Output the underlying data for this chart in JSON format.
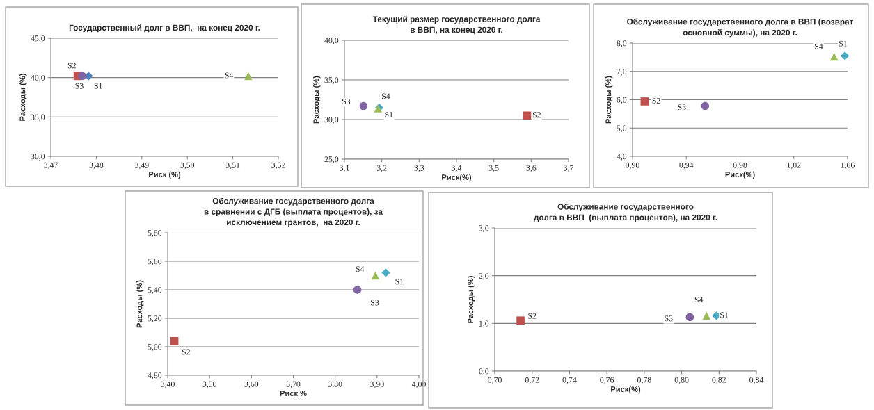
{
  "chart_data": [
    {
      "type": "scatter",
      "title": "Государственный долг в ВВП,  на конец 2020 г.",
      "xlabel": "Риск (%)",
      "ylabel": "Расходы (%)",
      "grid": "y",
      "legend": false,
      "xlim": [
        3.47,
        3.52
      ],
      "xticks": [
        {
          "value": 3.47,
          "label": "3,47"
        },
        {
          "value": 3.48,
          "label": "3,48"
        },
        {
          "value": 3.49,
          "label": "3,49"
        },
        {
          "value": 3.5,
          "label": "3,50"
        },
        {
          "value": 3.51,
          "label": "3,51"
        },
        {
          "value": 3.52,
          "label": "3,52"
        }
      ],
      "ylim": [
        30,
        45
      ],
      "yticks": [
        {
          "value": 30,
          "label": "30,0"
        },
        {
          "value": 35,
          "label": "35,0"
        },
        {
          "value": 40,
          "label": "40,0"
        },
        {
          "value": 45,
          "label": "45,0"
        }
      ],
      "series": [
        {
          "name": "S1",
          "color": "#4f81bd",
          "marker": "diamond",
          "x": [
            3.4783
          ],
          "values": [
            40.2
          ]
        },
        {
          "name": "S2",
          "color": "#c0504d",
          "marker": "square",
          "x": [
            3.4759
          ],
          "values": [
            40.2
          ]
        },
        {
          "name": "S3",
          "color": "#8064a2",
          "marker": "circle",
          "x": [
            3.4769
          ],
          "values": [
            40.2
          ]
        },
        {
          "name": "S4",
          "color": "#9bbb59",
          "marker": "triangle",
          "x": [
            3.5134
          ],
          "values": [
            40.2
          ]
        }
      ]
    },
    {
      "type": "scatter",
      "title": "Текущий размер государственного долга\nв ВВП, на конец 2020 г.",
      "xlabel": "Риск(%)",
      "ylabel": "Расходы (%)",
      "grid": "y",
      "legend": false,
      "xlim": [
        3.1,
        3.7
      ],
      "xticks": [
        {
          "value": 3.1,
          "label": "3,1"
        },
        {
          "value": 3.2,
          "label": "3,2"
        },
        {
          "value": 3.3,
          "label": "3,3"
        },
        {
          "value": 3.4,
          "label": "3,4"
        },
        {
          "value": 3.5,
          "label": "3,5"
        },
        {
          "value": 3.6,
          "label": "3,6"
        },
        {
          "value": 3.7,
          "label": "3,7"
        }
      ],
      "ylim": [
        25,
        40
      ],
      "yticks": [
        {
          "value": 25,
          "label": "25,0"
        },
        {
          "value": 30,
          "label": "30,0"
        },
        {
          "value": 35,
          "label": "35,0"
        },
        {
          "value": 40,
          "label": "40,0"
        }
      ],
      "series": [
        {
          "name": "S1",
          "color": "#4bacc6",
          "marker": "diamond",
          "x": [
            3.193
          ],
          "values": [
            31.5
          ]
        },
        {
          "name": "S2",
          "color": "#c0504d",
          "marker": "square",
          "x": [
            3.589
          ],
          "values": [
            30.5
          ]
        },
        {
          "name": "S3",
          "color": "#8064a2",
          "marker": "circle",
          "x": [
            3.151
          ],
          "values": [
            31.7
          ]
        },
        {
          "name": "S4",
          "color": "#9bbb59",
          "marker": "triangle",
          "x": [
            3.19
          ],
          "values": [
            31.4
          ]
        }
      ]
    },
    {
      "type": "scatter",
      "title": "Обслуживание государственного долга в ВВП (возврат\nосновной суммы), на 2020 г.",
      "xlabel": "Риск(%)",
      "ylabel": "Расходы (%)",
      "grid": "y",
      "legend": false,
      "xlim": [
        0.9,
        1.06
      ],
      "xticks": [
        {
          "value": 0.9,
          "label": "0,90"
        },
        {
          "value": 0.94,
          "label": "0,94"
        },
        {
          "value": 0.98,
          "label": "0,98"
        },
        {
          "value": 1.02,
          "label": "1,02"
        },
        {
          "value": 1.06,
          "label": "1,06"
        }
      ],
      "ylim": [
        4,
        8
      ],
      "yticks": [
        {
          "value": 4,
          "label": "4,0"
        },
        {
          "value": 5,
          "label": "5,0"
        },
        {
          "value": 6,
          "label": "6,0"
        },
        {
          "value": 7,
          "label": "7,0"
        },
        {
          "value": 8,
          "label": "8,0"
        }
      ],
      "series": [
        {
          "name": "S1",
          "color": "#4bacc6",
          "marker": "diamond",
          "x": [
            1.058
          ],
          "values": [
            7.55
          ]
        },
        {
          "name": "S2",
          "color": "#c0504d",
          "marker": "square",
          "x": [
            0.909
          ],
          "values": [
            5.94
          ]
        },
        {
          "name": "S3",
          "color": "#8064a2",
          "marker": "circle",
          "x": [
            0.954
          ],
          "values": [
            5.78
          ]
        },
        {
          "name": "S4",
          "color": "#9bbb59",
          "marker": "triangle",
          "x": [
            1.05
          ],
          "values": [
            7.52
          ]
        }
      ]
    },
    {
      "type": "scatter",
      "title": "Обслуживание государственного долга\nв сравнении с ДГБ (выплата процентов), за\nисключением грантов,  на 2020 г.",
      "xlabel": "Риск %",
      "ylabel": "Расходы (%)",
      "grid": "y",
      "legend": false,
      "xlim": [
        3.4,
        4.0
      ],
      "xticks": [
        {
          "value": 3.4,
          "label": "3,40"
        },
        {
          "value": 3.5,
          "label": "3,50"
        },
        {
          "value": 3.6,
          "label": "3,60"
        },
        {
          "value": 3.7,
          "label": "3,70"
        },
        {
          "value": 3.8,
          "label": "3,80"
        },
        {
          "value": 3.9,
          "label": "3,90"
        },
        {
          "value": 4.0,
          "label": "4,00"
        }
      ],
      "ylim": [
        4.8,
        5.8
      ],
      "yticks": [
        {
          "value": 4.8,
          "label": "4,80"
        },
        {
          "value": 5.0,
          "label": "5,00"
        },
        {
          "value": 5.2,
          "label": "5,20"
        },
        {
          "value": 5.4,
          "label": "5,40"
        },
        {
          "value": 5.6,
          "label": "5,60"
        },
        {
          "value": 5.8,
          "label": "5,80"
        }
      ],
      "series": [
        {
          "name": "S1",
          "color": "#4bacc6",
          "marker": "diamond",
          "x": [
            3.921
          ],
          "values": [
            5.52
          ]
        },
        {
          "name": "S2",
          "color": "#c0504d",
          "marker": "square",
          "x": [
            3.416
          ],
          "values": [
            5.04
          ]
        },
        {
          "name": "S3",
          "color": "#8064a2",
          "marker": "circle",
          "x": [
            3.853
          ],
          "values": [
            5.4
          ]
        },
        {
          "name": "S4",
          "color": "#9bbb59",
          "marker": "triangle",
          "x": [
            3.896
          ],
          "values": [
            5.5
          ]
        }
      ]
    },
    {
      "type": "scatter",
      "title": "Обслуживание государственного\nдолга в ВВП  (выплата процентов), на 2020 г.",
      "xlabel": "Риск(%)",
      "ylabel": "Расходы (%)",
      "grid": "y",
      "legend": false,
      "xlim": [
        0.7,
        0.84
      ],
      "xticks": [
        {
          "value": 0.7,
          "label": "0,70"
        },
        {
          "value": 0.72,
          "label": "0,72"
        },
        {
          "value": 0.74,
          "label": "0,74"
        },
        {
          "value": 0.76,
          "label": "0,76"
        },
        {
          "value": 0.78,
          "label": "0,78"
        },
        {
          "value": 0.8,
          "label": "0,80"
        },
        {
          "value": 0.82,
          "label": "0,82"
        },
        {
          "value": 0.84,
          "label": "0,84"
        }
      ],
      "ylim": [
        0,
        3
      ],
      "yticks": [
        {
          "value": 0,
          "label": "0,0"
        },
        {
          "value": 1,
          "label": "1,0"
        },
        {
          "value": 2,
          "label": "2,0"
        },
        {
          "value": 3,
          "label": "3,0"
        }
      ],
      "series": [
        {
          "name": "S1",
          "color": "#4bacc6",
          "marker": "diamond",
          "x": [
            0.8186
          ],
          "values": [
            1.16
          ]
        },
        {
          "name": "S2",
          "color": "#c0504d",
          "marker": "square",
          "x": [
            0.7138
          ],
          "values": [
            1.06
          ]
        },
        {
          "name": "S3",
          "color": "#8064a2",
          "marker": "circle",
          "x": [
            0.8044
          ],
          "values": [
            1.13
          ]
        },
        {
          "name": "S4",
          "color": "#9bbb59",
          "marker": "triangle",
          "x": [
            0.8133
          ],
          "values": [
            1.16
          ]
        }
      ]
    }
  ]
}
